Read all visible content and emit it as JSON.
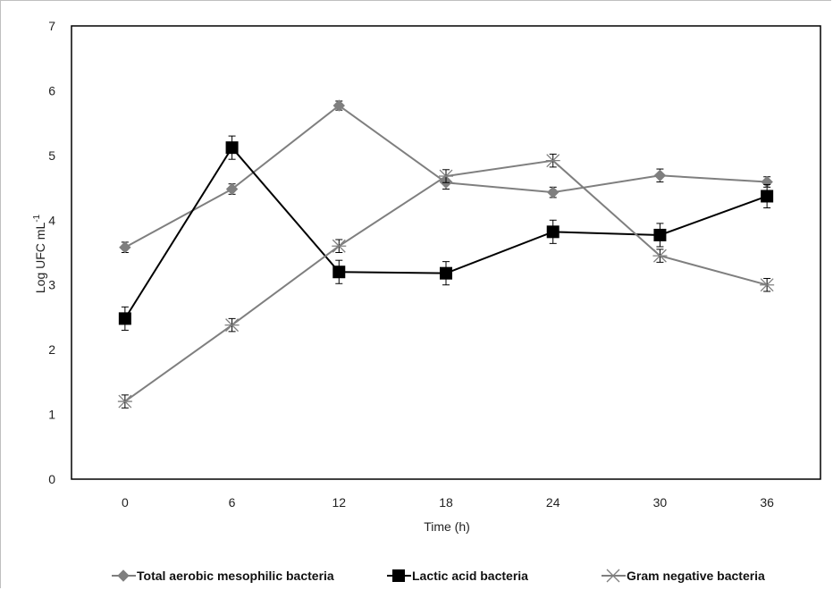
{
  "chart_data": {
    "type": "line",
    "x": [
      0,
      6,
      12,
      18,
      24,
      30,
      36
    ],
    "xlabel": "Time (h)",
    "ylabel": "Log UFC mL",
    "ylabel_superscript": "-1",
    "ylim": [
      0,
      7
    ],
    "yticks": [
      0,
      1,
      2,
      3,
      4,
      5,
      6,
      7
    ],
    "grid": false,
    "legend_position": "bottom",
    "series": [
      {
        "name": "Total aerobic mesophilic bacteria",
        "marker": "diamond",
        "color": "#7f7f7f",
        "values": [
          3.58,
          4.48,
          5.77,
          4.58,
          4.43,
          4.69,
          4.59
        ],
        "errors": [
          0.08,
          0.08,
          0.07,
          0.1,
          0.08,
          0.1,
          0.08
        ]
      },
      {
        "name": "Lactic acid bacteria",
        "marker": "square",
        "color": "#000000",
        "values": [
          2.48,
          5.12,
          3.2,
          3.18,
          3.82,
          3.77,
          4.37
        ],
        "errors": [
          0.18,
          0.18,
          0.18,
          0.18,
          0.18,
          0.18,
          0.18
        ]
      },
      {
        "name": "Gram negative bacteria",
        "marker": "asterisk",
        "color": "#7f7f7f",
        "values": [
          1.2,
          2.38,
          3.6,
          4.68,
          4.92,
          3.45,
          3.0
        ],
        "errors": [
          0.1,
          0.1,
          0.1,
          0.1,
          0.1,
          0.1,
          0.1
        ]
      }
    ]
  }
}
